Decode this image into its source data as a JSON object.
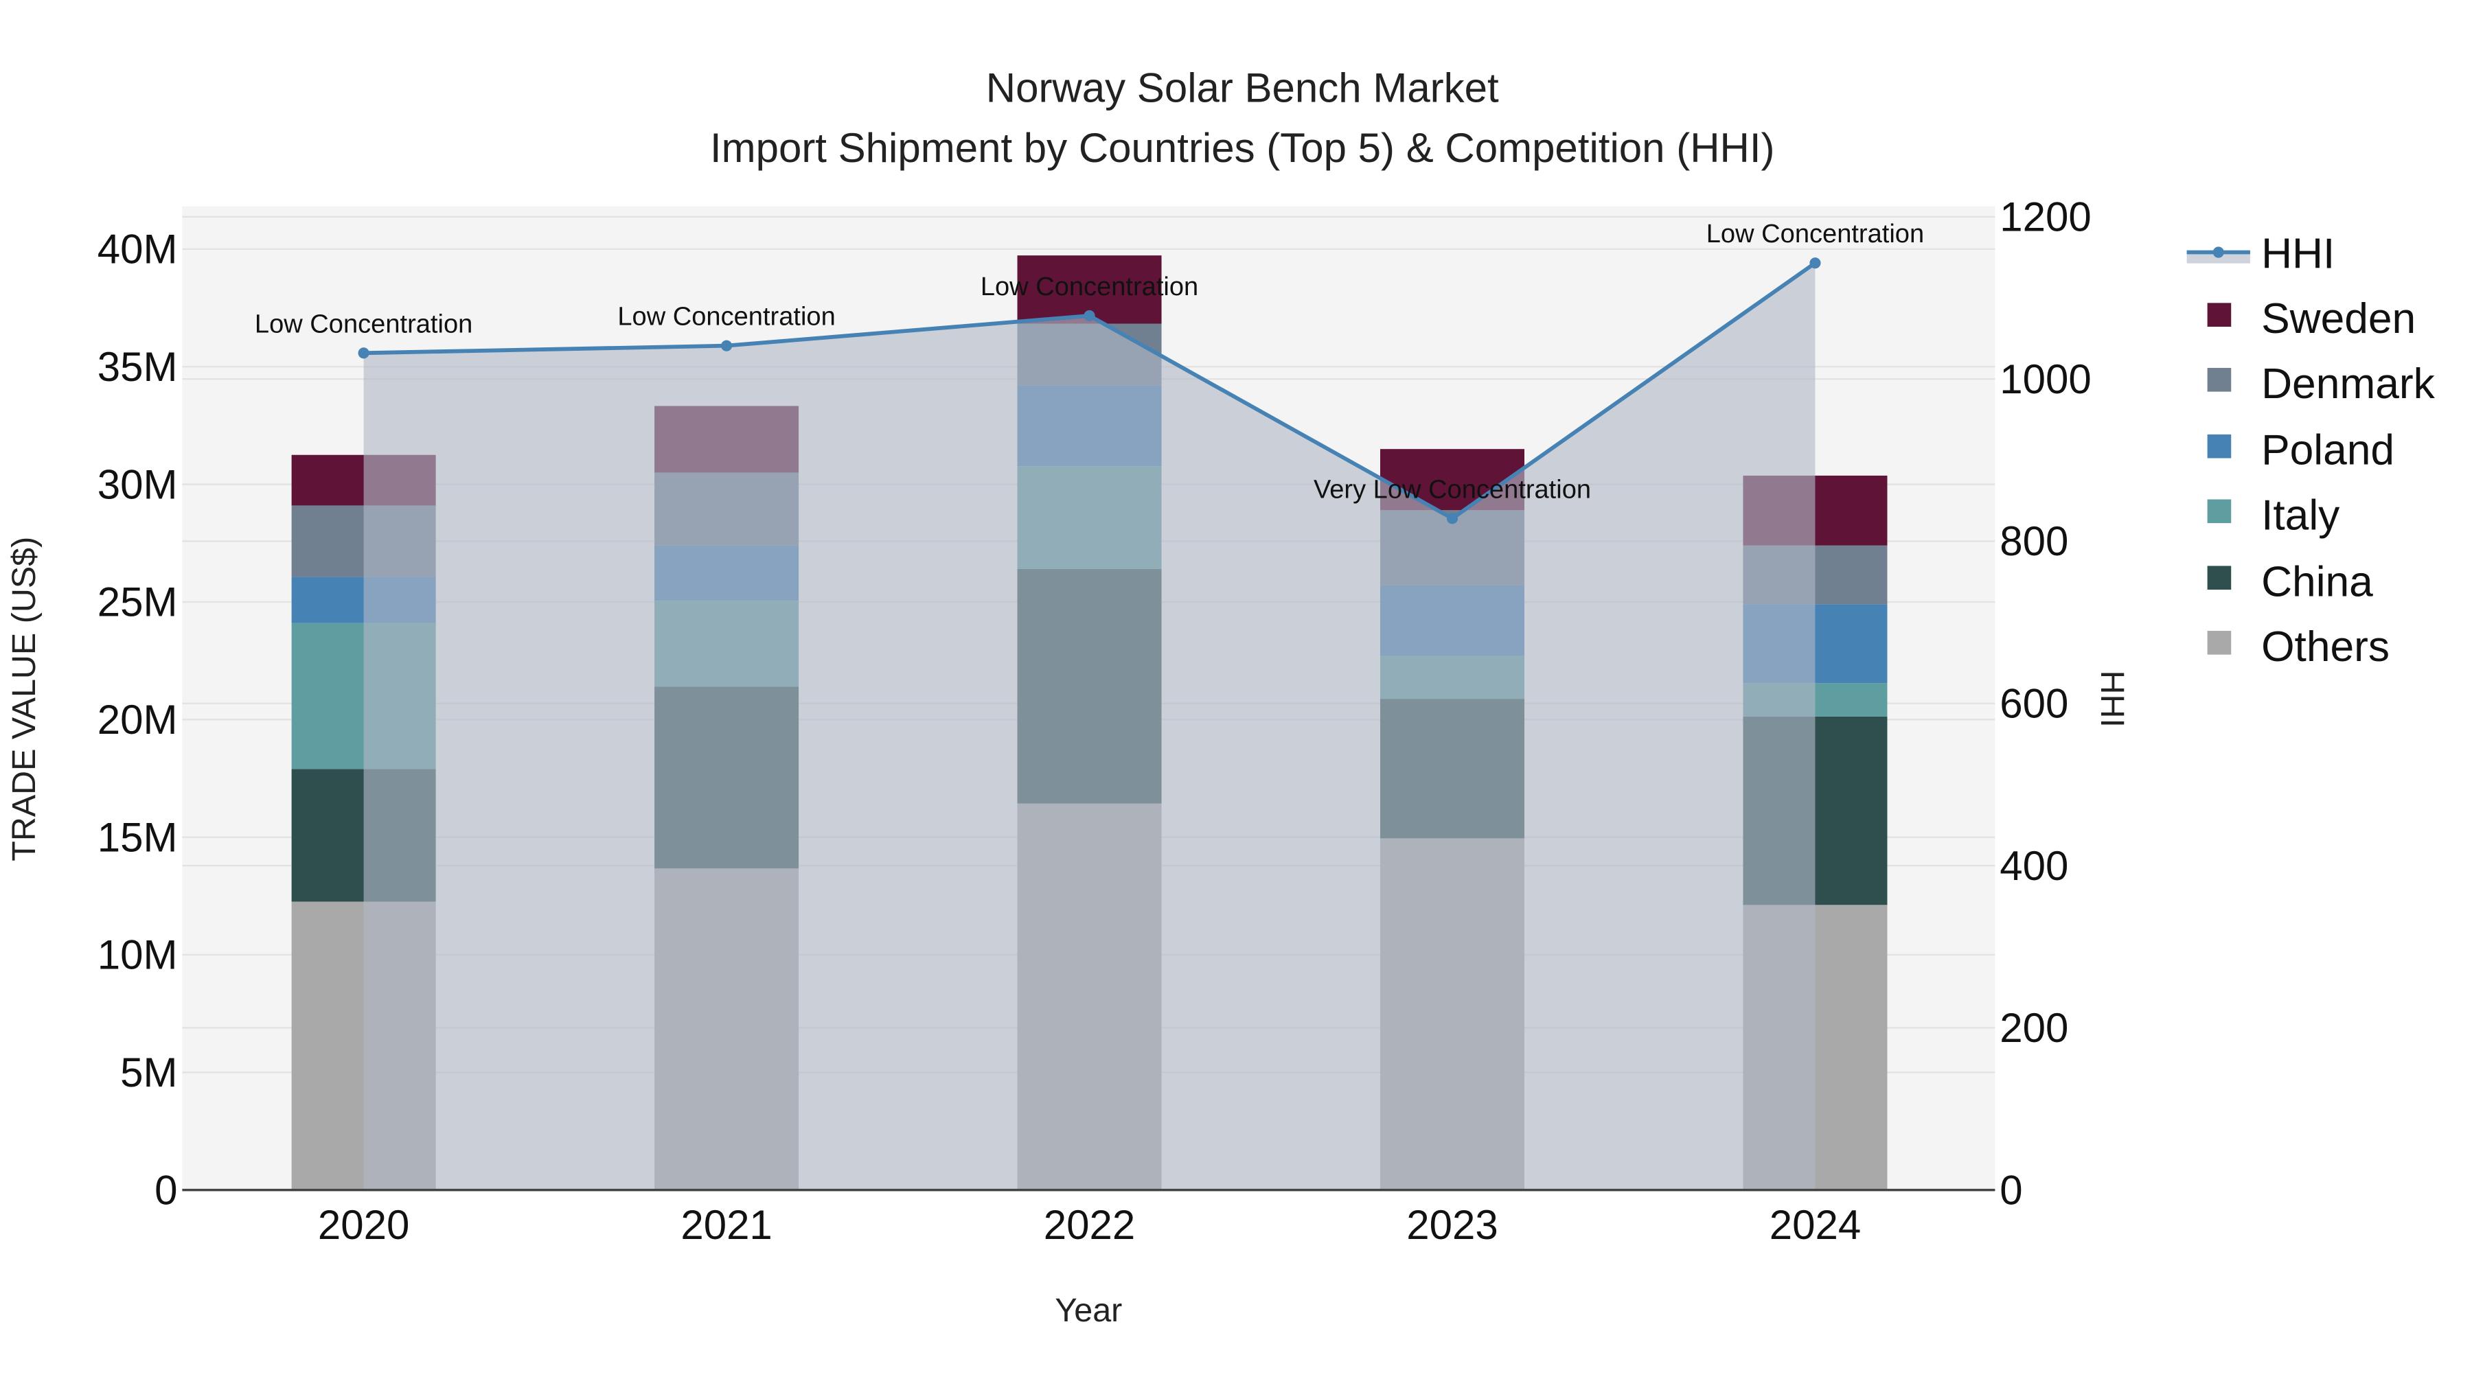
{
  "chart": {
    "title_line1": "Norway Solar Bench Market",
    "title_line2": "Import Shipment by Countries (Top 5) & Competition (HHI)",
    "xlabel": "Year",
    "ylabel_left": "TRADE VALUE (US$)",
    "ylabel_right": "HHI"
  },
  "legend": {
    "items": [
      {
        "label": "HHI",
        "type": "line",
        "color": "#4682B4"
      },
      {
        "label": "Sweden",
        "type": "bar",
        "color": "#5F1336"
      },
      {
        "label": "Denmark",
        "type": "bar",
        "color": "#708090"
      },
      {
        "label": "Poland",
        "type": "bar",
        "color": "#4682B4"
      },
      {
        "label": "Italy",
        "type": "bar",
        "color": "#5F9EA0"
      },
      {
        "label": "China",
        "type": "bar",
        "color": "#2F4F4F"
      },
      {
        "label": "Others",
        "type": "bar",
        "color": "#A9A9A9"
      }
    ]
  },
  "colors": {
    "plot_bg": "#F4F4F4",
    "grid": "#E2E2E2",
    "hhi_line": "#4682B4",
    "hhi_fill": "rgba(176,184,198,0.62)",
    "axis_line": "#444444"
  },
  "chart_data": {
    "type": "bar",
    "stacked": true,
    "title": "Norway Solar Bench Market — Import Shipment by Countries (Top 5) & Competition (HHI)",
    "xlabel": "Year",
    "ylabel": "TRADE VALUE (US$)",
    "y2label": "HHI",
    "categories": [
      "2020",
      "2021",
      "2022",
      "2023",
      "2024"
    ],
    "ylim": [
      0,
      42000000
    ],
    "y_ticks": [
      "0",
      "5M",
      "10M",
      "15M",
      "20M",
      "25M",
      "30M",
      "35M",
      "40M"
    ],
    "y2lim": [
      0,
      1230
    ],
    "y2_ticks": [
      "0",
      "200",
      "400",
      "600",
      "800",
      "1000",
      "1200"
    ],
    "legend_position": "right",
    "grid": true,
    "series": [
      {
        "name": "Others",
        "color": "#A9A9A9",
        "values": [
          12260000,
          13670000,
          16430000,
          14950000,
          12120000
        ]
      },
      {
        "name": "China",
        "color": "#2F4F4F",
        "values": [
          5640000,
          7730000,
          9970000,
          5930000,
          8010000
        ]
      },
      {
        "name": "Italy",
        "color": "#5F9EA0",
        "values": [
          6200000,
          3650000,
          4370000,
          1820000,
          1420000
        ]
      },
      {
        "name": "Poland",
        "color": "#4682B4",
        "values": [
          1960000,
          2350000,
          3430000,
          3000000,
          3350000
        ]
      },
      {
        "name": "Denmark",
        "color": "#708090",
        "values": [
          3040000,
          3100000,
          2630000,
          3200000,
          2500000
        ]
      },
      {
        "name": "Sweden",
        "color": "#5F1336",
        "values": [
          2150000,
          2830000,
          2900000,
          2600000,
          2970000
        ]
      }
    ],
    "hhi": {
      "name": "HHI",
      "type": "line+area",
      "color": "#4682B4",
      "values": [
        1032,
        1041,
        1078,
        828,
        1143
      ],
      "annotations": [
        "Low Concentration",
        "Low Concentration",
        "Low Concentration",
        "Very Low Concentration",
        "Low Concentration"
      ]
    }
  }
}
